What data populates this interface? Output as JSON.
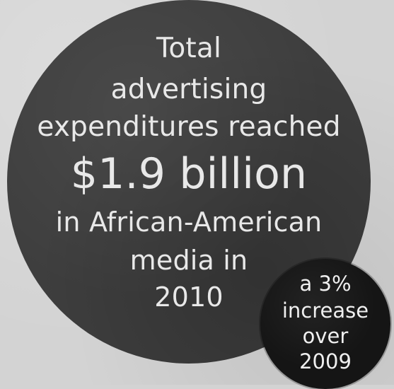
{
  "main": {
    "line1": "Total",
    "line2": "advertising",
    "line3": "expenditures reached",
    "highlight": "$1.9 billion",
    "line5": "in African-American",
    "line6": "media in",
    "line7": "2010"
  },
  "callout": {
    "line1": "a 3%",
    "line2": "increase",
    "line3": "over",
    "line4": "2009"
  },
  "colors": {
    "background": "#d3d3d3",
    "main_circle": "#3e3e3e",
    "callout_circle": "#151515",
    "text": "#e8e8e8"
  }
}
